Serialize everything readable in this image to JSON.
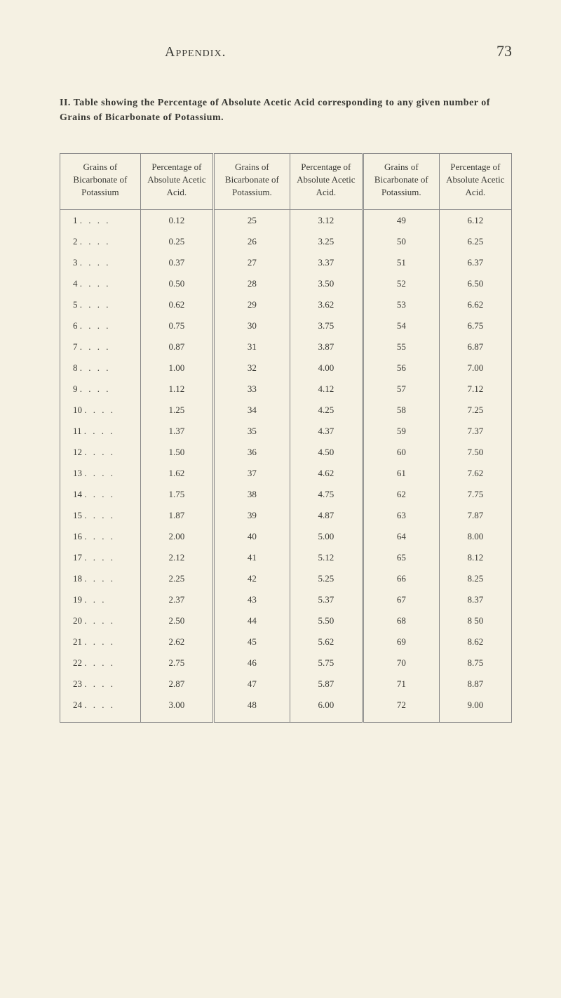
{
  "page": {
    "header_title": "Appendix.",
    "page_number": "73"
  },
  "caption": {
    "prefix": "II. Table showing the Percentage of Absolute Acetic Acid corresponding to any given number of Grains of Bicarbonate of Potassium."
  },
  "table": {
    "columns": [
      "Grains of Bicarbonate of Potassium",
      "Percentage of Absolute Acetic Acid.",
      "Grains of Bicarbonate of Potassium.",
      "Percentage of Absolute Acetic Acid.",
      "Grains of Bicarbonate of Potassium.",
      "Percentage of Absolute Acetic Acid."
    ],
    "rows": [
      [
        "1 . . . .",
        "0.12",
        "25",
        "3.12",
        "49",
        "6.12"
      ],
      [
        "2 . . . .",
        "0.25",
        "26",
        "3.25",
        "50",
        "6.25"
      ],
      [
        "3 . . . .",
        "0.37",
        "27",
        "3.37",
        "51",
        "6.37"
      ],
      [
        "4 . . . .",
        "0.50",
        "28",
        "3.50",
        "52",
        "6.50"
      ],
      [
        "5 . . . .",
        "0.62",
        "29",
        "3.62",
        "53",
        "6.62"
      ],
      [
        "6 . . . .",
        "0.75",
        "30",
        "3.75",
        "54",
        "6.75"
      ],
      [
        "7 . . . .",
        "0.87",
        "31",
        "3.87",
        "55",
        "6.87"
      ],
      [
        "8 . . . .",
        "1.00",
        "32",
        "4.00",
        "56",
        "7.00"
      ],
      [
        "9 . . . .",
        "1.12",
        "33",
        "4.12",
        "57",
        "7.12"
      ],
      [
        "10 . . . .",
        "1.25",
        "34",
        "4.25",
        "58",
        "7.25"
      ],
      [
        "11 . . . .",
        "1.37",
        "35",
        "4.37",
        "59",
        "7.37"
      ],
      [
        "12 . . . .",
        "1.50",
        "36",
        "4.50",
        "60",
        "7.50"
      ],
      [
        "13 . . . .",
        "1.62",
        "37",
        "4.62",
        "61",
        "7.62"
      ],
      [
        "14 . . . .",
        "1.75",
        "38",
        "4.75",
        "62",
        "7.75"
      ],
      [
        "15 . . . .",
        "1.87",
        "39",
        "4.87",
        "63",
        "7.87"
      ],
      [
        "16 . . . .",
        "2.00",
        "40",
        "5.00",
        "64",
        "8.00"
      ],
      [
        "17 . . . .",
        "2.12",
        "41",
        "5.12",
        "65",
        "8.12"
      ],
      [
        "18 . . . .",
        "2.25",
        "42",
        "5.25",
        "66",
        "8.25"
      ],
      [
        "19   . . .",
        "2.37",
        "43",
        "5.37",
        "67",
        "8.37"
      ],
      [
        "20 . . . .",
        "2.50",
        "44",
        "5.50",
        "68",
        "8 50"
      ],
      [
        "21 . . . .",
        "2.62",
        "45",
        "5.62",
        "69",
        "8.62"
      ],
      [
        "22 . . . .",
        "2.75",
        "46",
        "5.75",
        "70",
        "8.75"
      ],
      [
        "23 . . . .",
        "2.87",
        "47",
        "5.87",
        "71",
        "8.87"
      ],
      [
        "24 . . . .",
        "3.00",
        "48",
        "6.00",
        "72",
        "9.00"
      ]
    ]
  },
  "styling": {
    "background_color": "#f5f1e3",
    "text_color": "#3a3a35",
    "rule_color": "#888888",
    "body_fontsize": 13,
    "caption_fontsize": 14,
    "header_fontsize": 20,
    "pagenum_fontsize": 22
  }
}
